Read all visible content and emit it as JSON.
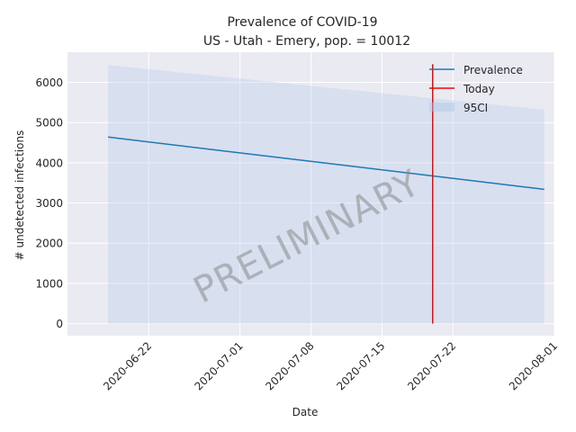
{
  "chart_data": {
    "type": "line",
    "title": "Prevalence of COVID-19",
    "subtitle": "US - Utah - Emery, pop. = 10012",
    "xlabel": "Date",
    "ylabel": "# undetected infections",
    "xlim": [
      "2020-06-14",
      "2020-08-01"
    ],
    "ylim": [
      -300,
      6750
    ],
    "x_ticks": [
      "2020-06-22",
      "2020-07-01",
      "2020-07-08",
      "2020-07-15",
      "2020-07-22",
      "2020-08-01"
    ],
    "y_ticks": [
      0,
      1000,
      2000,
      3000,
      4000,
      5000,
      6000
    ],
    "grid": true,
    "legend_position": "top-right",
    "series": [
      {
        "name": "Prevalence",
        "kind": "line",
        "color": "#1f77b4",
        "x": [
          "2020-06-18",
          "2020-07-31"
        ],
        "y": [
          4640,
          3340
        ]
      },
      {
        "name": "95CI",
        "kind": "band",
        "color": "#aec7e8",
        "x": [
          "2020-06-18",
          "2020-07-31"
        ],
        "lower": [
          0,
          0
        ],
        "upper": [
          6430,
          5320
        ]
      },
      {
        "name": "Today",
        "kind": "vline",
        "color": "#ff0000",
        "x": "2020-07-20",
        "y": [
          0,
          6450
        ]
      }
    ],
    "annotation": "PRELIMINARY"
  }
}
